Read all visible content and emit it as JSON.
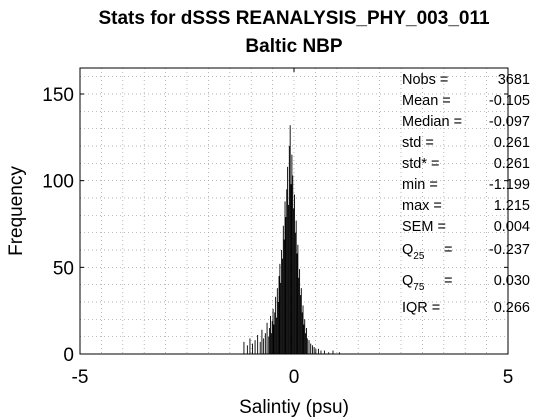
{
  "chart_data": {
    "type": "bar",
    "title": "Stats for dSSS REANALYSIS_PHY_003_011",
    "subtitle": "Baltic NBP",
    "xlabel": "Salintiy (psu)",
    "ylabel": "Frequency",
    "xlim": [
      -5,
      5
    ],
    "ylim": [
      0,
      165
    ],
    "xticks": [
      "-5",
      "0",
      "5"
    ],
    "yticks": [
      "0",
      "50",
      "100",
      "150"
    ],
    "ytick_values": [
      0,
      50,
      100,
      150
    ],
    "xtick_values": [
      -5,
      0,
      5
    ],
    "grid": true,
    "bin_width": 0.02,
    "x": [
      -1.18,
      -1.1,
      -1.04,
      -0.98,
      -0.92,
      -0.86,
      -0.8,
      -0.76,
      -0.72,
      -0.68,
      -0.64,
      -0.6,
      -0.58,
      -0.56,
      -0.54,
      -0.52,
      -0.5,
      -0.48,
      -0.46,
      -0.44,
      -0.42,
      -0.4,
      -0.38,
      -0.36,
      -0.34,
      -0.32,
      -0.3,
      -0.28,
      -0.26,
      -0.24,
      -0.22,
      -0.2,
      -0.18,
      -0.16,
      -0.14,
      -0.12,
      -0.1,
      -0.08,
      -0.06,
      -0.04,
      -0.02,
      0.0,
      0.02,
      0.04,
      0.06,
      0.08,
      0.1,
      0.12,
      0.14,
      0.16,
      0.18,
      0.2,
      0.22,
      0.24,
      0.26,
      0.28,
      0.3,
      0.34,
      0.38,
      0.42,
      0.46,
      0.5,
      0.56,
      0.62,
      0.7,
      0.8,
      0.9,
      1.05
    ],
    "values": [
      7,
      5,
      9,
      6,
      8,
      11,
      7,
      14,
      9,
      12,
      18,
      10,
      15,
      22,
      12,
      19,
      26,
      17,
      24,
      33,
      21,
      38,
      30,
      45,
      52,
      41,
      60,
      55,
      74,
      66,
      88,
      79,
      95,
      108,
      86,
      120,
      132,
      98,
      115,
      103,
      84,
      92,
      70,
      77,
      58,
      63,
      44,
      49,
      34,
      38,
      24,
      28,
      17,
      20,
      12,
      15,
      9,
      8,
      6,
      5,
      4,
      3,
      3,
      2,
      2,
      1,
      2,
      1
    ],
    "stats": [
      {
        "label": "Nobs =",
        "value": "3681"
      },
      {
        "label": "Mean =",
        "value": "-0.105"
      },
      {
        "label": "Median =",
        "value": "-0.097"
      },
      {
        "label": "std =",
        "value": "0.261"
      },
      {
        "label": "std* =",
        "value": "0.261"
      },
      {
        "label": "min =",
        "value": "-1.199"
      },
      {
        "label": "max =",
        "value": "1.215"
      },
      {
        "label": "SEM =",
        "value": "0.004"
      },
      {
        "label": "Q",
        "sub": "25",
        "eq": "=",
        "value": "-0.237"
      },
      {
        "label": "Q",
        "sub": "75",
        "eq": "=",
        "value": "0.030"
      },
      {
        "label": "IQR =",
        "value": "0.266"
      }
    ],
    "colors": {
      "bars": "#000000",
      "grid": "#9a9a9a",
      "axes": "#000000"
    }
  }
}
